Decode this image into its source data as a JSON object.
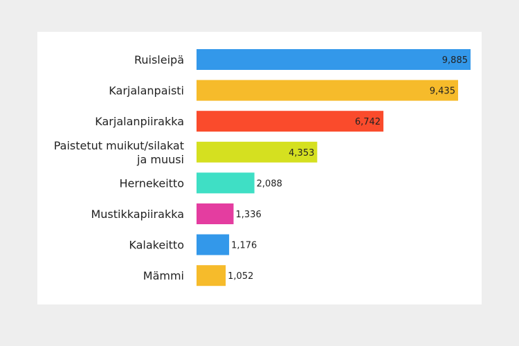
{
  "chart_data": {
    "type": "bar",
    "orientation": "horizontal",
    "categories": [
      [
        "Ruisleipä"
      ],
      [
        "Karjalanpaisti"
      ],
      [
        "Karjalanpiirakka"
      ],
      [
        "Paistetut muikut/silakat",
        "ja muusi"
      ],
      [
        "Hernekeitto"
      ],
      [
        "Mustikkapiirakka"
      ],
      [
        "Kalakeitto"
      ],
      [
        "Mämmi"
      ]
    ],
    "values": [
      9885,
      9435,
      6742,
      4353,
      2088,
      1336,
      1176,
      1052
    ],
    "value_labels": [
      "9,885",
      "9,435",
      "6,742",
      "4,353",
      "2,088",
      "1,336",
      "1,176",
      "1,052"
    ],
    "colors": [
      "#3398ea",
      "#f6bb2b",
      "#fa4b2c",
      "#d5e020",
      "#3fdfc5",
      "#e43da0",
      "#3398ea",
      "#f6bb2b"
    ],
    "xlim": [
      0,
      9885
    ],
    "title": "",
    "xlabel": "",
    "ylabel": "",
    "grid": false,
    "legend": "none"
  }
}
